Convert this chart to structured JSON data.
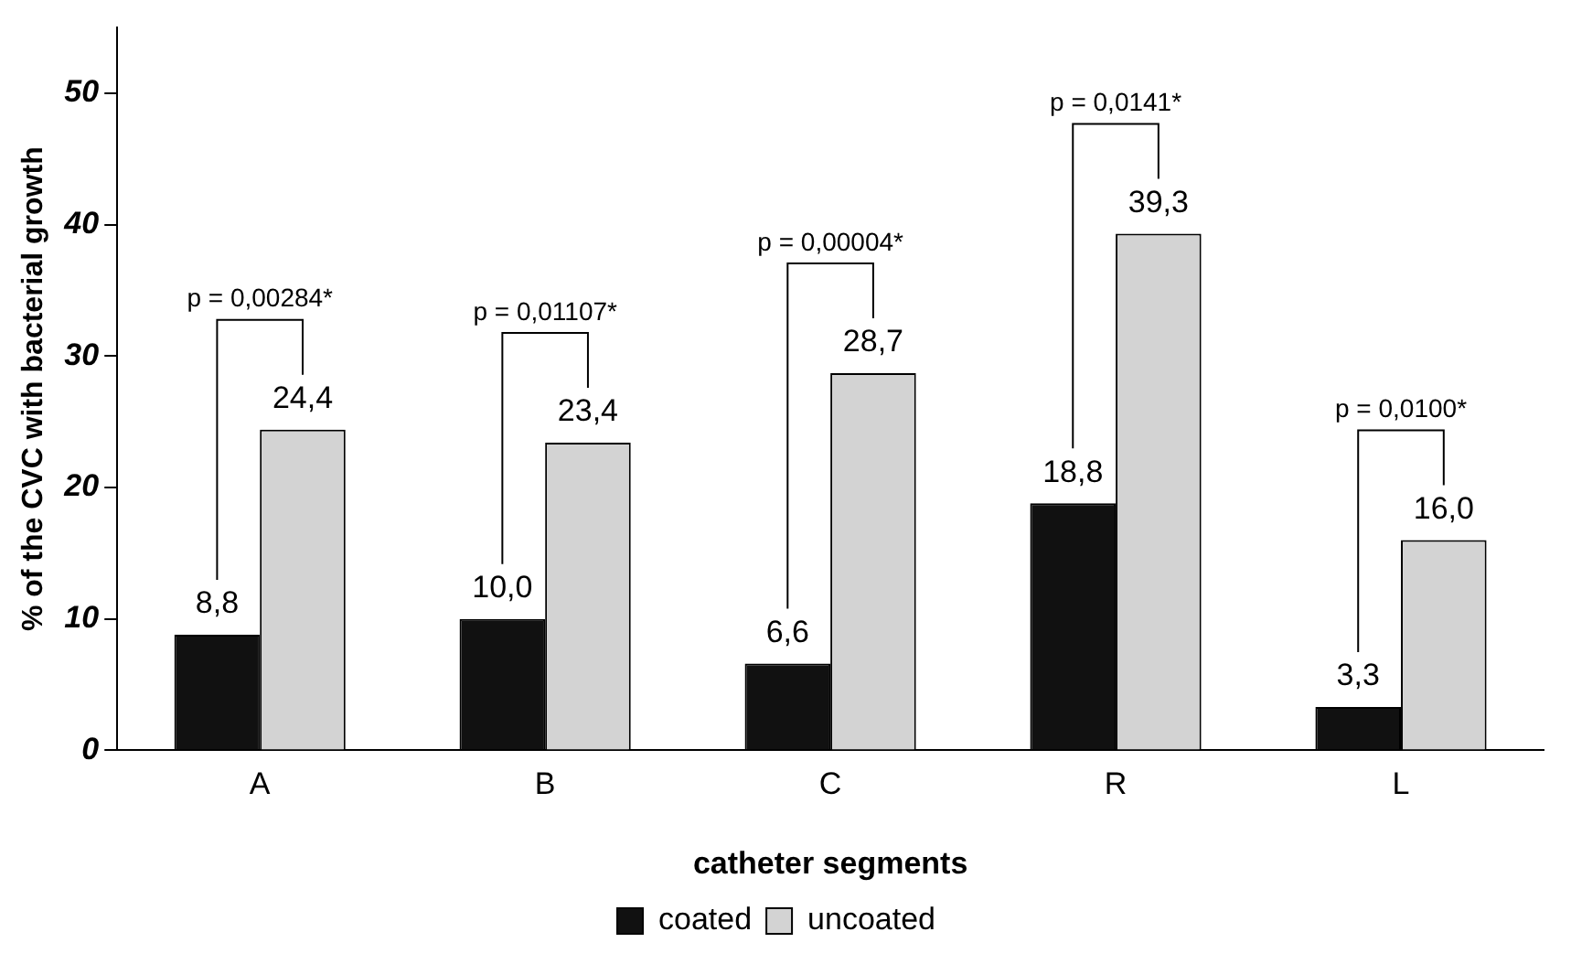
{
  "chart_data": {
    "type": "bar",
    "xlabel": "catheter segments",
    "ylabel": "% of the CVC with bacterial growth",
    "categories": [
      "A",
      "B",
      "C",
      "R",
      "L"
    ],
    "series": [
      {
        "name": "coated",
        "color": "#111111",
        "values": [
          8.8,
          10.0,
          6.6,
          18.8,
          3.3
        ],
        "value_labels": [
          "8,8",
          "10,0",
          "6,6",
          "18,8",
          "3,3"
        ]
      },
      {
        "name": "uncoated",
        "color": "#d3d3d3",
        "values": [
          24.4,
          23.4,
          28.7,
          39.3,
          16.0
        ],
        "value_labels": [
          "24,4",
          "23,4",
          "28,7",
          "39,3",
          "16,0"
        ]
      }
    ],
    "ylim": [
      0,
      55
    ],
    "yticks": [
      0,
      10,
      20,
      30,
      40,
      50
    ],
    "grid": false,
    "legend": "bottom",
    "annotations": [
      "p = 0,00284*",
      "p = 0,01107*",
      "p = 0,00004*",
      "p = 0,0141*",
      "p = 0,0100*"
    ]
  }
}
